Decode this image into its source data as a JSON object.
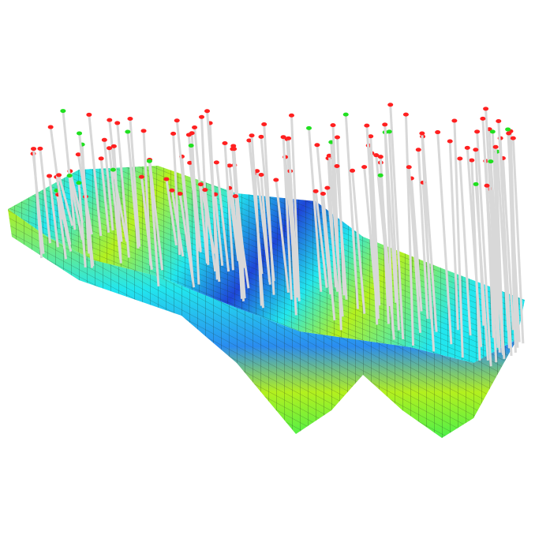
{
  "scene": {
    "background": "#ffffff",
    "colors": {
      "deep_blue": "#1e46d8",
      "blue": "#2a8cf0",
      "cyan": "#22e6ee",
      "green": "#4cf04a",
      "yellow_green": "#b4f01e",
      "grid_line": "#1a2a1a",
      "well_shaft": "#d8d8d8",
      "well_marker_red": "#ff2020",
      "well_marker_green": "#20e020"
    }
  }
}
